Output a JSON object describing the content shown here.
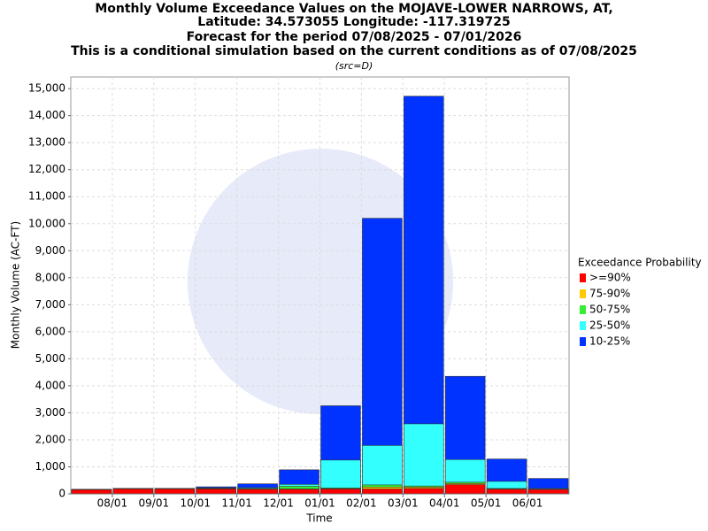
{
  "chart_data": {
    "type": "overlapping_bar",
    "title": "Monthly Volume Exceedance Values on the MOJAVE-LOWER NARROWS, AT,",
    "subtitle_lines": [
      "Latitude: 34.573055 Longitude: -117.319725",
      "Forecast for the period 07/08/2025 - 07/01/2026",
      "This is a conditional simulation based on the current conditions as of 07/08/2025"
    ],
    "source_note": "(src=D)",
    "xlabel": "Time",
    "ylabel": "Monthly Volume (AC-FT)",
    "xticks": [
      "08/01",
      "09/01",
      "10/01",
      "11/01",
      "12/01",
      "01/01",
      "02/01",
      "03/01",
      "04/01",
      "05/01",
      "06/01"
    ],
    "ylim": [
      0,
      15430
    ],
    "yticks": [
      0,
      {
        "value": 1000,
        "label": "1,000"
      },
      {
        "value": 2000,
        "label": "2,000"
      },
      {
        "value": 3000,
        "label": "3,000"
      },
      {
        "value": 4000,
        "label": "4,000"
      },
      {
        "value": 5000,
        "label": "5,000"
      },
      {
        "value": 6000,
        "label": "6,000"
      },
      {
        "value": 7000,
        "label": "7,000"
      },
      {
        "value": 8000,
        "label": "8,000"
      },
      {
        "value": 9000,
        "label": "9,000"
      },
      {
        "value": 10000,
        "label": "10,000"
      },
      {
        "value": 11000,
        "label": "11,000"
      },
      {
        "value": 12000,
        "label": "12,000"
      },
      {
        "value": 13000,
        "label": "13,000"
      },
      {
        "value": 14000,
        "label": "14,000"
      },
      {
        "value": 15000,
        "label": "15,000"
      }
    ],
    "grid": true,
    "legend_title": "Exceedance Probability",
    "series": [
      {
        "name": ">=90%",
        "color": "#ff0000",
        "values": [
          150,
          180,
          180,
          180,
          170,
          170,
          180,
          180,
          200,
          340,
          170,
          160
        ]
      },
      {
        "name": "75-90%",
        "color": "#ffc800",
        "values": [
          155,
          185,
          185,
          190,
          180,
          180,
          190,
          250,
          250,
          380,
          180,
          170
        ]
      },
      {
        "name": "50-75%",
        "color": "#33ee33",
        "values": [
          160,
          190,
          190,
          200,
          200,
          280,
          220,
          330,
          290,
          430,
          200,
          180
        ]
      },
      {
        "name": "25-50%",
        "color": "#33ffff",
        "values": [
          165,
          195,
          195,
          220,
          230,
          350,
          1250,
          1790,
          2590,
          1270,
          460,
          200
        ]
      },
      {
        "name": "10-25%",
        "color": "#0033ff",
        "values": [
          170,
          200,
          200,
          260,
          370,
          890,
          3260,
          10200,
          14720,
          4350,
          1290,
          570
        ]
      }
    ]
  }
}
